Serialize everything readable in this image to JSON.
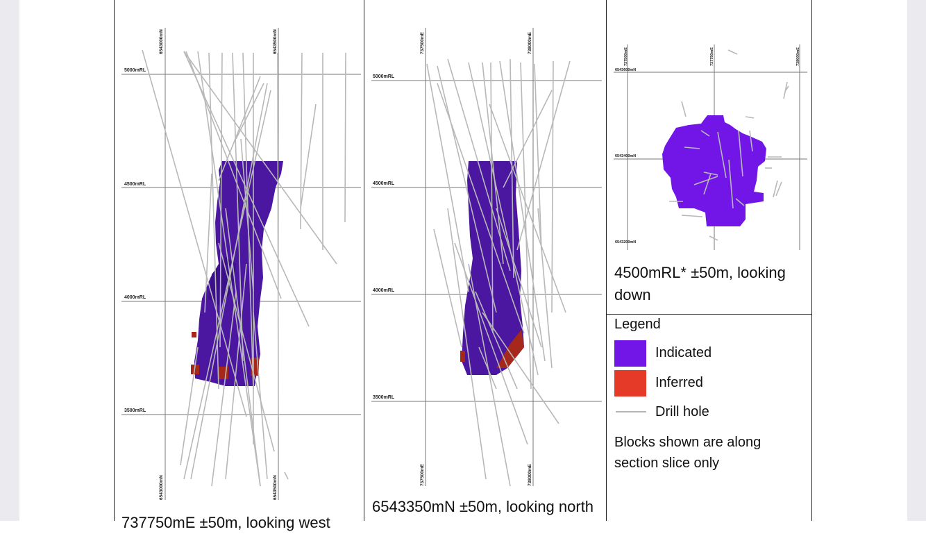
{
  "colors": {
    "indicated": "#7216e8",
    "inferred": "#e53a27",
    "drill_hole": "#b8b8b8",
    "block_dark": "#4b16a0",
    "block_red_dark": "#a6281a"
  },
  "panel_west": {
    "caption": "737750mE ±50m, looking west",
    "grid_top_labels": [
      "6543000mN",
      "6543500mN"
    ],
    "grid_bottom_labels": [
      "6543000mN",
      "6543500mN"
    ],
    "rl_labels": [
      "5000mRL",
      "4500mRL",
      "4000mRL",
      "3500mRL"
    ]
  },
  "panel_north": {
    "caption": "6543350mN ±50m, looking north",
    "grid_top_labels": [
      "737500mE",
      "738000mE"
    ],
    "grid_bottom_labels": [
      "737500mE",
      "738000mE"
    ],
    "rl_labels": [
      "5000mRL",
      "4500mRL",
      "4000mRL",
      "3500mRL"
    ]
  },
  "panel_plan": {
    "caption_line1": "4500mRL* ±50m, looking",
    "caption_line2": "down",
    "grid_top_labels": [
      "737500mE",
      "737750mE",
      "738000mE"
    ],
    "grid_left_labels": [
      "6543600mN",
      "6543400mN",
      "6543200mN"
    ]
  },
  "legend": {
    "title": "Legend",
    "items": [
      {
        "label": "Indicated",
        "icon": "indicated-swatch"
      },
      {
        "label": "Inferred",
        "icon": "inferred-swatch"
      },
      {
        "label": "Drill hole",
        "icon": "drill-hole-line"
      }
    ],
    "note_line1": "Blocks shown are along",
    "note_line2": "section slice only"
  }
}
